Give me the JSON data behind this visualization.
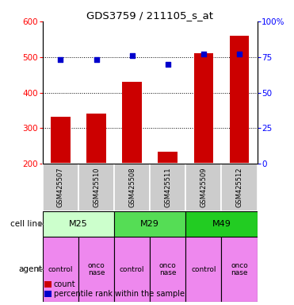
{
  "title": "GDS3759 / 211105_s_at",
  "samples": [
    "GSM425507",
    "GSM425510",
    "GSM425508",
    "GSM425511",
    "GSM425509",
    "GSM425512"
  ],
  "bar_values": [
    333,
    340,
    430,
    235,
    510,
    560
  ],
  "percentile_values": [
    73,
    73,
    76,
    70,
    77,
    77
  ],
  "bar_color": "#cc0000",
  "dot_color": "#0000cc",
  "ylim_left": [
    200,
    600
  ],
  "ylim_right": [
    0,
    100
  ],
  "yticks_left": [
    200,
    300,
    400,
    500,
    600
  ],
  "yticks_right": [
    0,
    25,
    50,
    75,
    100
  ],
  "ytick_labels_right": [
    "0",
    "25",
    "50",
    "75",
    "100%"
  ],
  "cell_lines": [
    {
      "label": "M25",
      "span": [
        0,
        2
      ],
      "color": "#ccffcc"
    },
    {
      "label": "M29",
      "span": [
        2,
        4
      ],
      "color": "#55dd55"
    },
    {
      "label": "M49",
      "span": [
        4,
        6
      ],
      "color": "#22cc22"
    }
  ],
  "agents": [
    "control",
    "onco\nnase",
    "control",
    "onco\nnase",
    "control",
    "onco\nnase"
  ],
  "agent_color": "#ee88ee",
  "sample_box_color": "#cccccc",
  "legend_items": [
    {
      "color": "#cc0000",
      "label": "count"
    },
    {
      "color": "#0000cc",
      "label": "percentile rank within the sample"
    }
  ],
  "row_label_cell_line": "cell line",
  "row_label_agent": "agent"
}
